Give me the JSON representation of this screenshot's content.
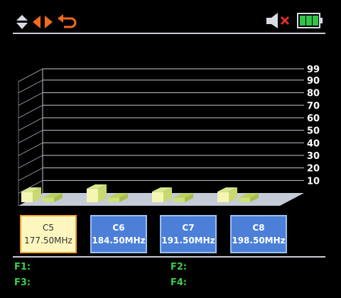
{
  "header": {
    "icons": [
      "up-down-arrows-icon",
      "left-right-arrows-icon",
      "return-icon",
      "muted-speaker-icon",
      "battery-icon"
    ]
  },
  "chart_data": {
    "type": "bar",
    "yticks": [
      "99",
      "90",
      "80",
      "70",
      "60",
      "50",
      "40",
      "30",
      "20",
      "10"
    ],
    "ylim": [
      0,
      99
    ],
    "categories": [
      "C5",
      "C6",
      "C7",
      "C8"
    ],
    "series": [
      {
        "values": [
          7,
          9,
          7,
          7
        ]
      },
      {
        "values": [
          3,
          3,
          3,
          3
        ]
      }
    ],
    "colors": {
      "bar_a": "#f4f7b4",
      "bar_b": "#cde07a",
      "floor": "#c6cbd8",
      "grid": "#c3c6d0"
    }
  },
  "channels": [
    {
      "name": "C5",
      "freq": "177.50MHz",
      "selected": true
    },
    {
      "name": "C6",
      "freq": "184.50MHz",
      "selected": false
    },
    {
      "name": "C7",
      "freq": "191.50MHz",
      "selected": false
    },
    {
      "name": "C8",
      "freq": "198.50MHz",
      "selected": false
    }
  ],
  "function_keys": {
    "f1": "F1:",
    "f2": "F2:",
    "f3": "F3:",
    "f4": "F4:"
  },
  "colors": {
    "accent_orange": "#f26a1b",
    "fkey_green": "#3ccf4a",
    "battery_green": "#33c34a",
    "channel_blue": "#4b7fd8",
    "channel_selected": "#fdf7bf"
  }
}
